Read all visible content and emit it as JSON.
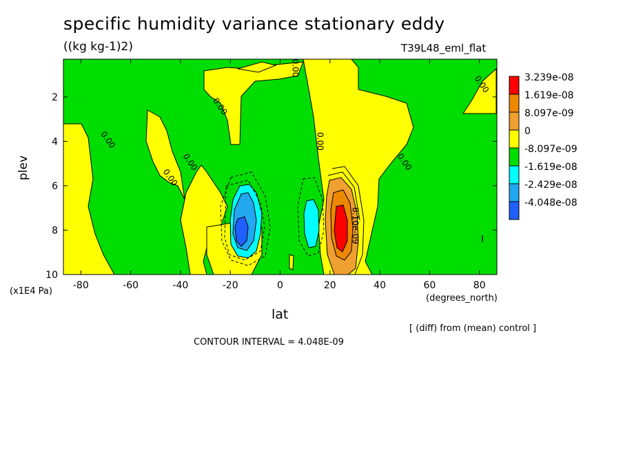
{
  "chart_data": {
    "type": "heatmap",
    "title": "specific humidity variance stationary eddy",
    "units": "((kg kg-1)2)",
    "experiment": "T39L48_eml_flat",
    "xlabel": "lat",
    "xunit": "(degrees_north)",
    "ylabel": "plev",
    "yunit": "(x1E4 Pa)",
    "xlim": [
      -87,
      87
    ],
    "ylim": [
      0.3,
      10
    ],
    "y_inverted": true,
    "xticks": [
      -80,
      -60,
      -40,
      -20,
      0,
      20,
      40,
      60,
      80
    ],
    "yticks": [
      2,
      4,
      6,
      8,
      10
    ],
    "diff_note": "[ (diff) from (mean) control ]",
    "contour_interval": "CONTOUR INTERVAL = 4.048E-09",
    "contour_labels": [
      {
        "text": "0.00",
        "lat": 5,
        "plev": 0.7
      },
      {
        "text": "0.00",
        "lat": 80,
        "plev": 1.5
      },
      {
        "text": "0.00",
        "lat": -25,
        "plev": 2.5
      },
      {
        "text": "0.00",
        "lat": -70,
        "plev": 4.0
      },
      {
        "text": "0.00",
        "lat": 15,
        "plev": 4.0
      },
      {
        "text": "0.00",
        "lat": -37,
        "plev": 5.0
      },
      {
        "text": "0.00",
        "lat": -45,
        "plev": 5.7
      },
      {
        "text": "0.00",
        "lat": 49,
        "plev": 5.0
      },
      {
        "text": "8.10e-09",
        "lat": 29,
        "plev": 7.8
      }
    ],
    "legend": [
      {
        "label": "3.239e-08",
        "color": "#ff0000"
      },
      {
        "label": "1.619e-08",
        "color": "#ee8800"
      },
      {
        "label": "8.097e-09",
        "color": "#f0a030"
      },
      {
        "label": "0",
        "color": "#ffff00"
      },
      {
        "label": "-8.097e-09",
        "color": "#00dd00"
      },
      {
        "label": "-1.619e-08",
        "color": "#00ffff"
      },
      {
        "label": "-2.429e-08",
        "color": "#22a8f0"
      },
      {
        "label": "-4.048e-08",
        "color": "#2060ff"
      }
    ],
    "legend_placement": "right",
    "grid": false
  }
}
